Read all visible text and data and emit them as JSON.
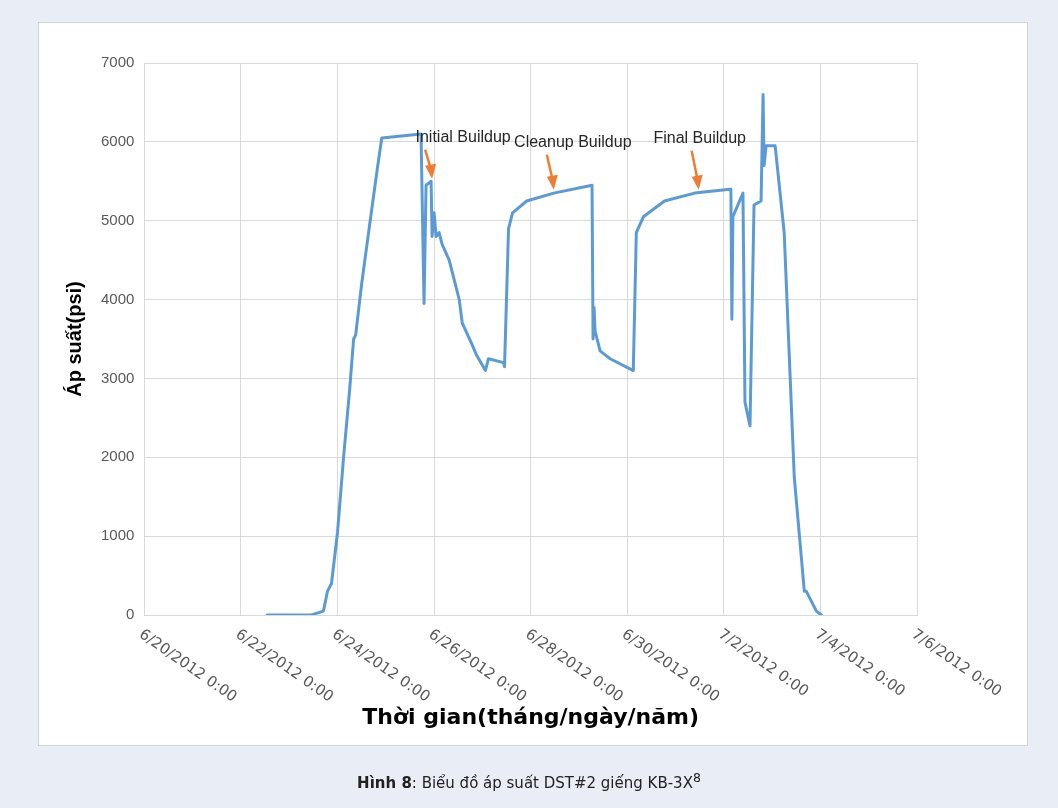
{
  "chart_data": {
    "type": "line",
    "xlabel": "Thời gian(tháng/ngày/năm)",
    "ylabel": "Áp suất(psi)",
    "grid": true,
    "legend": false,
    "marker": "none",
    "line_style": "solid",
    "xlim": [
      "2012-06-20",
      "2012-07-06"
    ],
    "xticks": [
      {
        "value": "2012-06-20",
        "label": "6/20/2012 0:00"
      },
      {
        "value": "2012-06-22",
        "label": "6/22/2012 0:00"
      },
      {
        "value": "2012-06-24",
        "label": "6/24/2012 0:00"
      },
      {
        "value": "2012-06-26",
        "label": "6/26/2012 0:00"
      },
      {
        "value": "2012-06-28",
        "label": "6/28/2012 0:00"
      },
      {
        "value": "2012-06-30",
        "label": "6/30/2012 0:00"
      },
      {
        "value": "2012-07-02",
        "label": "7/2/2012 0:00"
      },
      {
        "value": "2012-07-04",
        "label": "7/4/2012 0:00"
      },
      {
        "value": "2012-07-06",
        "label": "7/6/2012 0:00"
      }
    ],
    "ylim": [
      0,
      7000
    ],
    "yticks": [
      0,
      1000,
      2000,
      3000,
      4000,
      5000,
      6000,
      7000
    ],
    "series": [
      {
        "color": "#5b9bd5",
        "x": [
          "2012-06-22T13:00",
          "2012-06-23T11:00",
          "2012-06-23T17:00",
          "2012-06-23T19:00",
          "2012-06-23T21:00",
          "2012-06-24T00:00",
          "2012-06-24T03:00",
          "2012-06-24T06:00",
          "2012-06-24T08:00",
          "2012-06-24T09:00",
          "2012-06-24T12:00",
          "2012-06-24T16:30",
          "2012-06-24T20:00",
          "2012-06-24T22:00",
          "2012-06-25T17:30",
          "2012-06-25T19:00",
          "2012-06-25T20:00",
          "2012-06-25T22:30",
          "2012-06-25T23:00",
          "2012-06-26T00:00",
          "2012-06-26T01:00",
          "2012-06-26T02:30",
          "2012-06-26T04:00",
          "2012-06-26T07:30",
          "2012-06-26T12:30",
          "2012-06-26T14:00",
          "2012-06-26T18:30",
          "2012-06-26T21:00",
          "2012-06-27T01:30",
          "2012-06-27T03:00",
          "2012-06-27T10:30",
          "2012-06-27T11:00",
          "2012-06-27T13:00",
          "2012-06-27T15:00",
          "2012-06-27T22:00",
          "2012-06-28T11:30",
          "2012-06-29T06:30",
          "2012-06-29T07:00",
          "2012-06-29T07:30",
          "2012-06-29T08:00",
          "2012-06-29T10:30",
          "2012-06-29T15:30",
          "2012-06-30T03:00",
          "2012-06-30T04:30",
          "2012-06-30T08:00",
          "2012-06-30T18:30",
          "2012-07-01T09:30",
          "2012-07-02T03:00",
          "2012-07-02T03:30",
          "2012-07-02T04:00",
          "2012-07-02T04:30",
          "2012-07-02T07:00",
          "2012-07-02T09:30",
          "2012-07-02T10:30",
          "2012-07-02T13:00",
          "2012-07-02T15:00",
          "2012-07-02T18:30",
          "2012-07-02T19:30",
          "2012-07-02T20:00",
          "2012-07-02T21:00",
          "2012-07-03T01:30",
          "2012-07-03T06:00",
          "2012-07-03T11:00",
          "2012-07-03T16:00",
          "2012-07-03T17:00",
          "2012-07-03T22:00",
          "2012-07-04T00:30"
        ],
        "values": [
          0,
          0,
          50,
          300,
          400,
          1050,
          2000,
          2850,
          3500,
          3550,
          4200,
          5050,
          5700,
          6050,
          6100,
          3950,
          5450,
          5500,
          4800,
          5100,
          4800,
          4850,
          4700,
          4500,
          4000,
          3700,
          3450,
          3300,
          3100,
          3250,
          3200,
          3150,
          4900,
          5100,
          5250,
          5350,
          5450,
          3500,
          3900,
          3600,
          3350,
          3250,
          3100,
          4850,
          5050,
          5250,
          5350,
          5400,
          5400,
          3750,
          5050,
          5200,
          5350,
          2700,
          2400,
          5200,
          5250,
          6600,
          5700,
          5950,
          5950,
          4850,
          1750,
          300,
          300,
          50,
          0
        ]
      }
    ],
    "annotations": [
      {
        "text": "Initial Buildup",
        "x": "2012-06-25T22:30",
        "y": 5520
      },
      {
        "text": "Cleanup Buildup",
        "x": "2012-06-28T11:00",
        "y": 5380
      },
      {
        "text": "Final Buildup",
        "x": "2012-07-01T11:00",
        "y": 5380
      },
      "Hình 8: Biểu đồ áp suất DST#2 giếng KB-3X$^{8}$"
    ]
  }
}
